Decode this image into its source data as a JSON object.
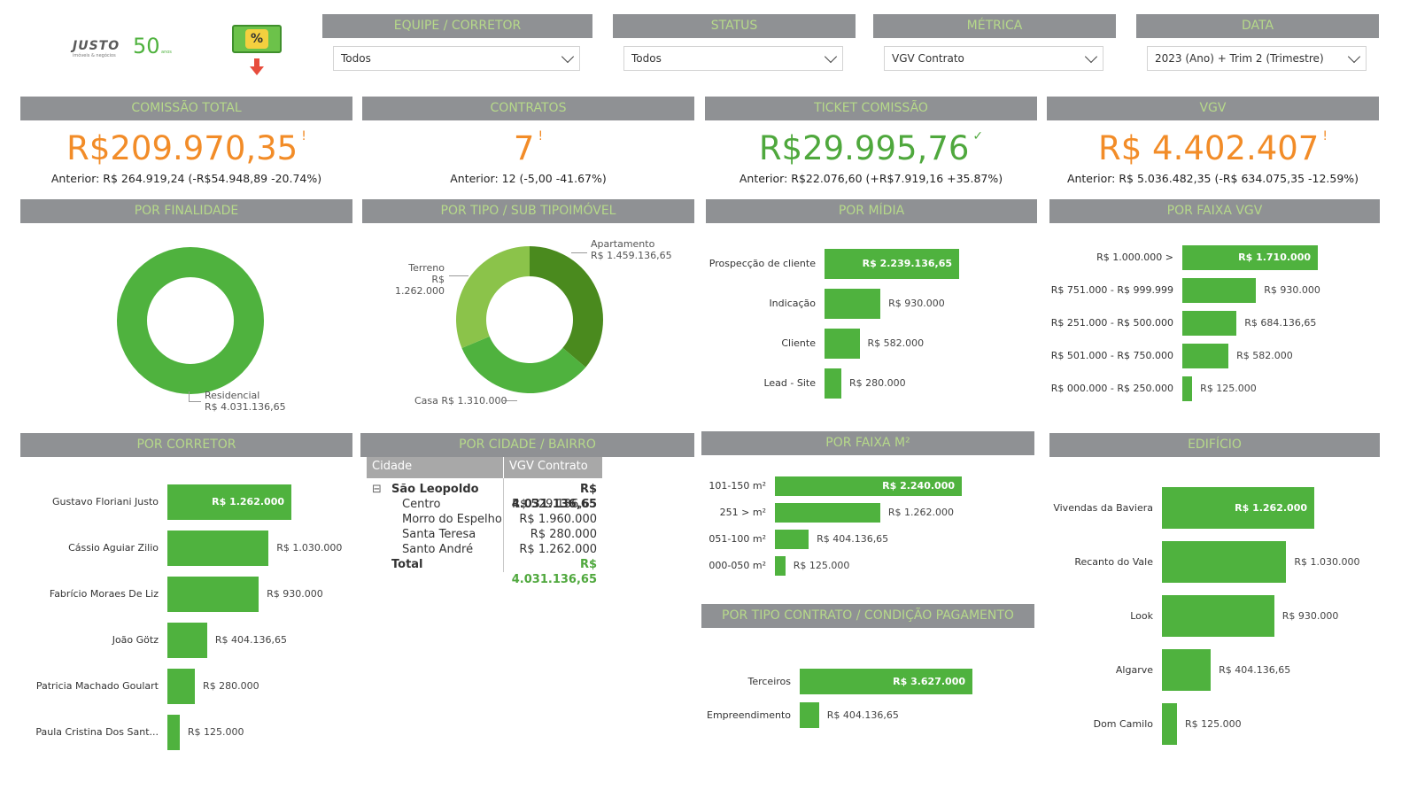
{
  "logo": {
    "brand": "JUSTO",
    "tagline": "imóveis & negócios",
    "years": "50",
    "years_caption": "anos"
  },
  "promo_icon": "percent-money-icon",
  "filters": [
    {
      "header": "EQUIPE / CORRETOR",
      "value": "Todos"
    },
    {
      "header": "STATUS",
      "value": "Todos"
    },
    {
      "header": "MÉTRICA",
      "value": "VGV Contrato"
    },
    {
      "header": "DATA",
      "value": "2023 (Ano) + Trim 2 (Trimestre)"
    }
  ],
  "kpis": [
    {
      "header": "COMISSÃO TOTAL",
      "value": "R$209.970,35",
      "flag": "!",
      "color": "#f28c28",
      "previous": "Anterior: R$ 264.919,24 (-R$54.948,89 -20.74%)"
    },
    {
      "header": "CONTRATOS",
      "value": "7",
      "flag": "!",
      "color": "#f28c28",
      "previous": "Anterior: 12 (-5,00 -41.67%)"
    },
    {
      "header": "TICKET COMISSÃO",
      "value": "R$29.995,76",
      "flag": "✓",
      "color": "#4fa83d",
      "previous": "Anterior: R$22.076,60 (+R$7.919,16 +35.87%)"
    },
    {
      "header": "VGV",
      "value": "R$ 4.402.407",
      "flag": "!",
      "color": "#f28c28",
      "previous": "Anterior: R$ 5.036.482,35 (-R$ 634.075,35 -12.59%)"
    }
  ],
  "sections": {
    "finalidade": "POR FINALIDADE",
    "tipo": "POR TIPO / SUB TIPOIMÓVEL",
    "midia": "POR MÍDIA",
    "faixa_vgv": "POR FAIXA VGV",
    "corretor": "POR CORRETOR",
    "cidade": "POR CIDADE / BAIRRO",
    "faixa_m2": "POR FAIXA M²",
    "edificio": "EDIFÍCIO",
    "contrato": "POR TIPO CONTRATO / CONDIÇÃO PAGAMENTO"
  },
  "chart_data": [
    {
      "type": "pie",
      "subtype": "donut",
      "name": "POR FINALIDADE",
      "categories": [
        "Residencial"
      ],
      "values": [
        4031136.65
      ],
      "labels": [
        [
          "Residencial",
          "R$ 4.031.136,65"
        ]
      ],
      "colors": [
        "#4fb23e"
      ]
    },
    {
      "type": "pie",
      "subtype": "donut",
      "name": "POR TIPO / SUB TIPOIMÓVEL",
      "categories": [
        "Apartamento",
        "Casa",
        "Terreno"
      ],
      "values": [
        1459136.65,
        1310000,
        1262000
      ],
      "labels": [
        [
          "Apartamento",
          "R$ 1.459.136,65"
        ],
        [
          "Casa R$ 1.310.000"
        ],
        [
          "Terreno",
          "R$ 1.262.000"
        ]
      ],
      "colors": [
        "#4a8a1e",
        "#4fb23e",
        "#8bc34a"
      ]
    },
    {
      "type": "bar",
      "orientation": "horizontal",
      "name": "POR MÍDIA",
      "categories": [
        "Prospecção de cliente",
        "Indicação",
        "Cliente",
        "Lead - Site"
      ],
      "values": [
        2239136.65,
        930000,
        582000,
        280000
      ],
      "labels": [
        "R$ 2.239.136,65",
        "R$ 930.000",
        "R$ 582.000",
        "R$ 280.000"
      ]
    },
    {
      "type": "bar",
      "orientation": "horizontal",
      "name": "POR FAIXA VGV",
      "categories": [
        "R$ 1.000.000 >",
        "R$ 751.000 - R$ 999.999",
        "R$ 251.000 - R$ 500.000",
        "R$ 501.000 - R$ 750.000",
        "R$ 000.000 - R$ 250.000"
      ],
      "values": [
        1710000,
        930000,
        684136.65,
        582000,
        125000
      ],
      "labels": [
        "R$ 1.710.000",
        "R$ 930.000",
        "R$ 684.136,65",
        "R$ 582.000",
        "R$ 125.000"
      ]
    },
    {
      "type": "bar",
      "orientation": "horizontal",
      "name": "POR CORRETOR",
      "categories": [
        "Gustavo Floriani Justo",
        "Cássio Aguiar Zilio",
        "Fabrício Moraes De Liz",
        "João Götz",
        "Patricia Machado Goulart",
        "Paula Cristina Dos Sant..."
      ],
      "values": [
        1262000,
        1030000,
        930000,
        404136.65,
        280000,
        125000
      ],
      "labels": [
        "R$ 1.262.000",
        "R$ 1.030.000",
        "R$ 930.000",
        "R$ 404.136,65",
        "R$ 280.000",
        "R$ 125.000"
      ]
    },
    {
      "type": "bar",
      "orientation": "horizontal",
      "name": "POR FAIXA M²",
      "categories": [
        "101-150 m²",
        "251 > m²",
        "051-100 m²",
        "000-050 m²"
      ],
      "values": [
        2240000,
        1262000,
        404136.65,
        125000
      ],
      "labels": [
        "R$ 2.240.000",
        "R$ 1.262.000",
        "R$ 404.136,65",
        "R$ 125.000"
      ]
    },
    {
      "type": "bar",
      "orientation": "horizontal",
      "name": "POR TIPO CONTRATO / CONDIÇÃO PAGAMENTO",
      "categories": [
        "Terceiros",
        "Empreendimento"
      ],
      "values": [
        3627000,
        404136.65
      ],
      "labels": [
        "R$ 3.627.000",
        "R$ 404.136,65"
      ]
    },
    {
      "type": "bar",
      "orientation": "horizontal",
      "name": "EDIFÍCIO",
      "categories": [
        "Vivendas da Baviera",
        "Recanto do Vale",
        "Look",
        "Algarve",
        "Dom Camilo"
      ],
      "values": [
        1262000,
        1030000,
        930000,
        404136.65,
        125000
      ],
      "labels": [
        "R$ 1.262.000",
        "R$ 1.030.000",
        "R$ 930.000",
        "R$ 404.136,65",
        "R$ 125.000"
      ]
    },
    {
      "type": "table",
      "name": "POR CIDADE / BAIRRO",
      "columns": [
        "Cidade",
        "VGV Contrato"
      ],
      "expander": "⊟",
      "rows": [
        {
          "label": "São Leopoldo",
          "value": "R$ 4.031.136,65",
          "level": 0
        },
        {
          "label": "Centro",
          "value": "R$ 529.136,65",
          "level": 1
        },
        {
          "label": "Morro do Espelho",
          "value": "R$ 1.960.000",
          "level": 1
        },
        {
          "label": "Santa Teresa",
          "value": "R$ 280.000",
          "level": 1
        },
        {
          "label": "Santo André",
          "value": "R$ 1.262.000",
          "level": 1
        },
        {
          "label": "Total",
          "value": "R$ 4.031.136,65",
          "level": 0
        }
      ]
    }
  ]
}
